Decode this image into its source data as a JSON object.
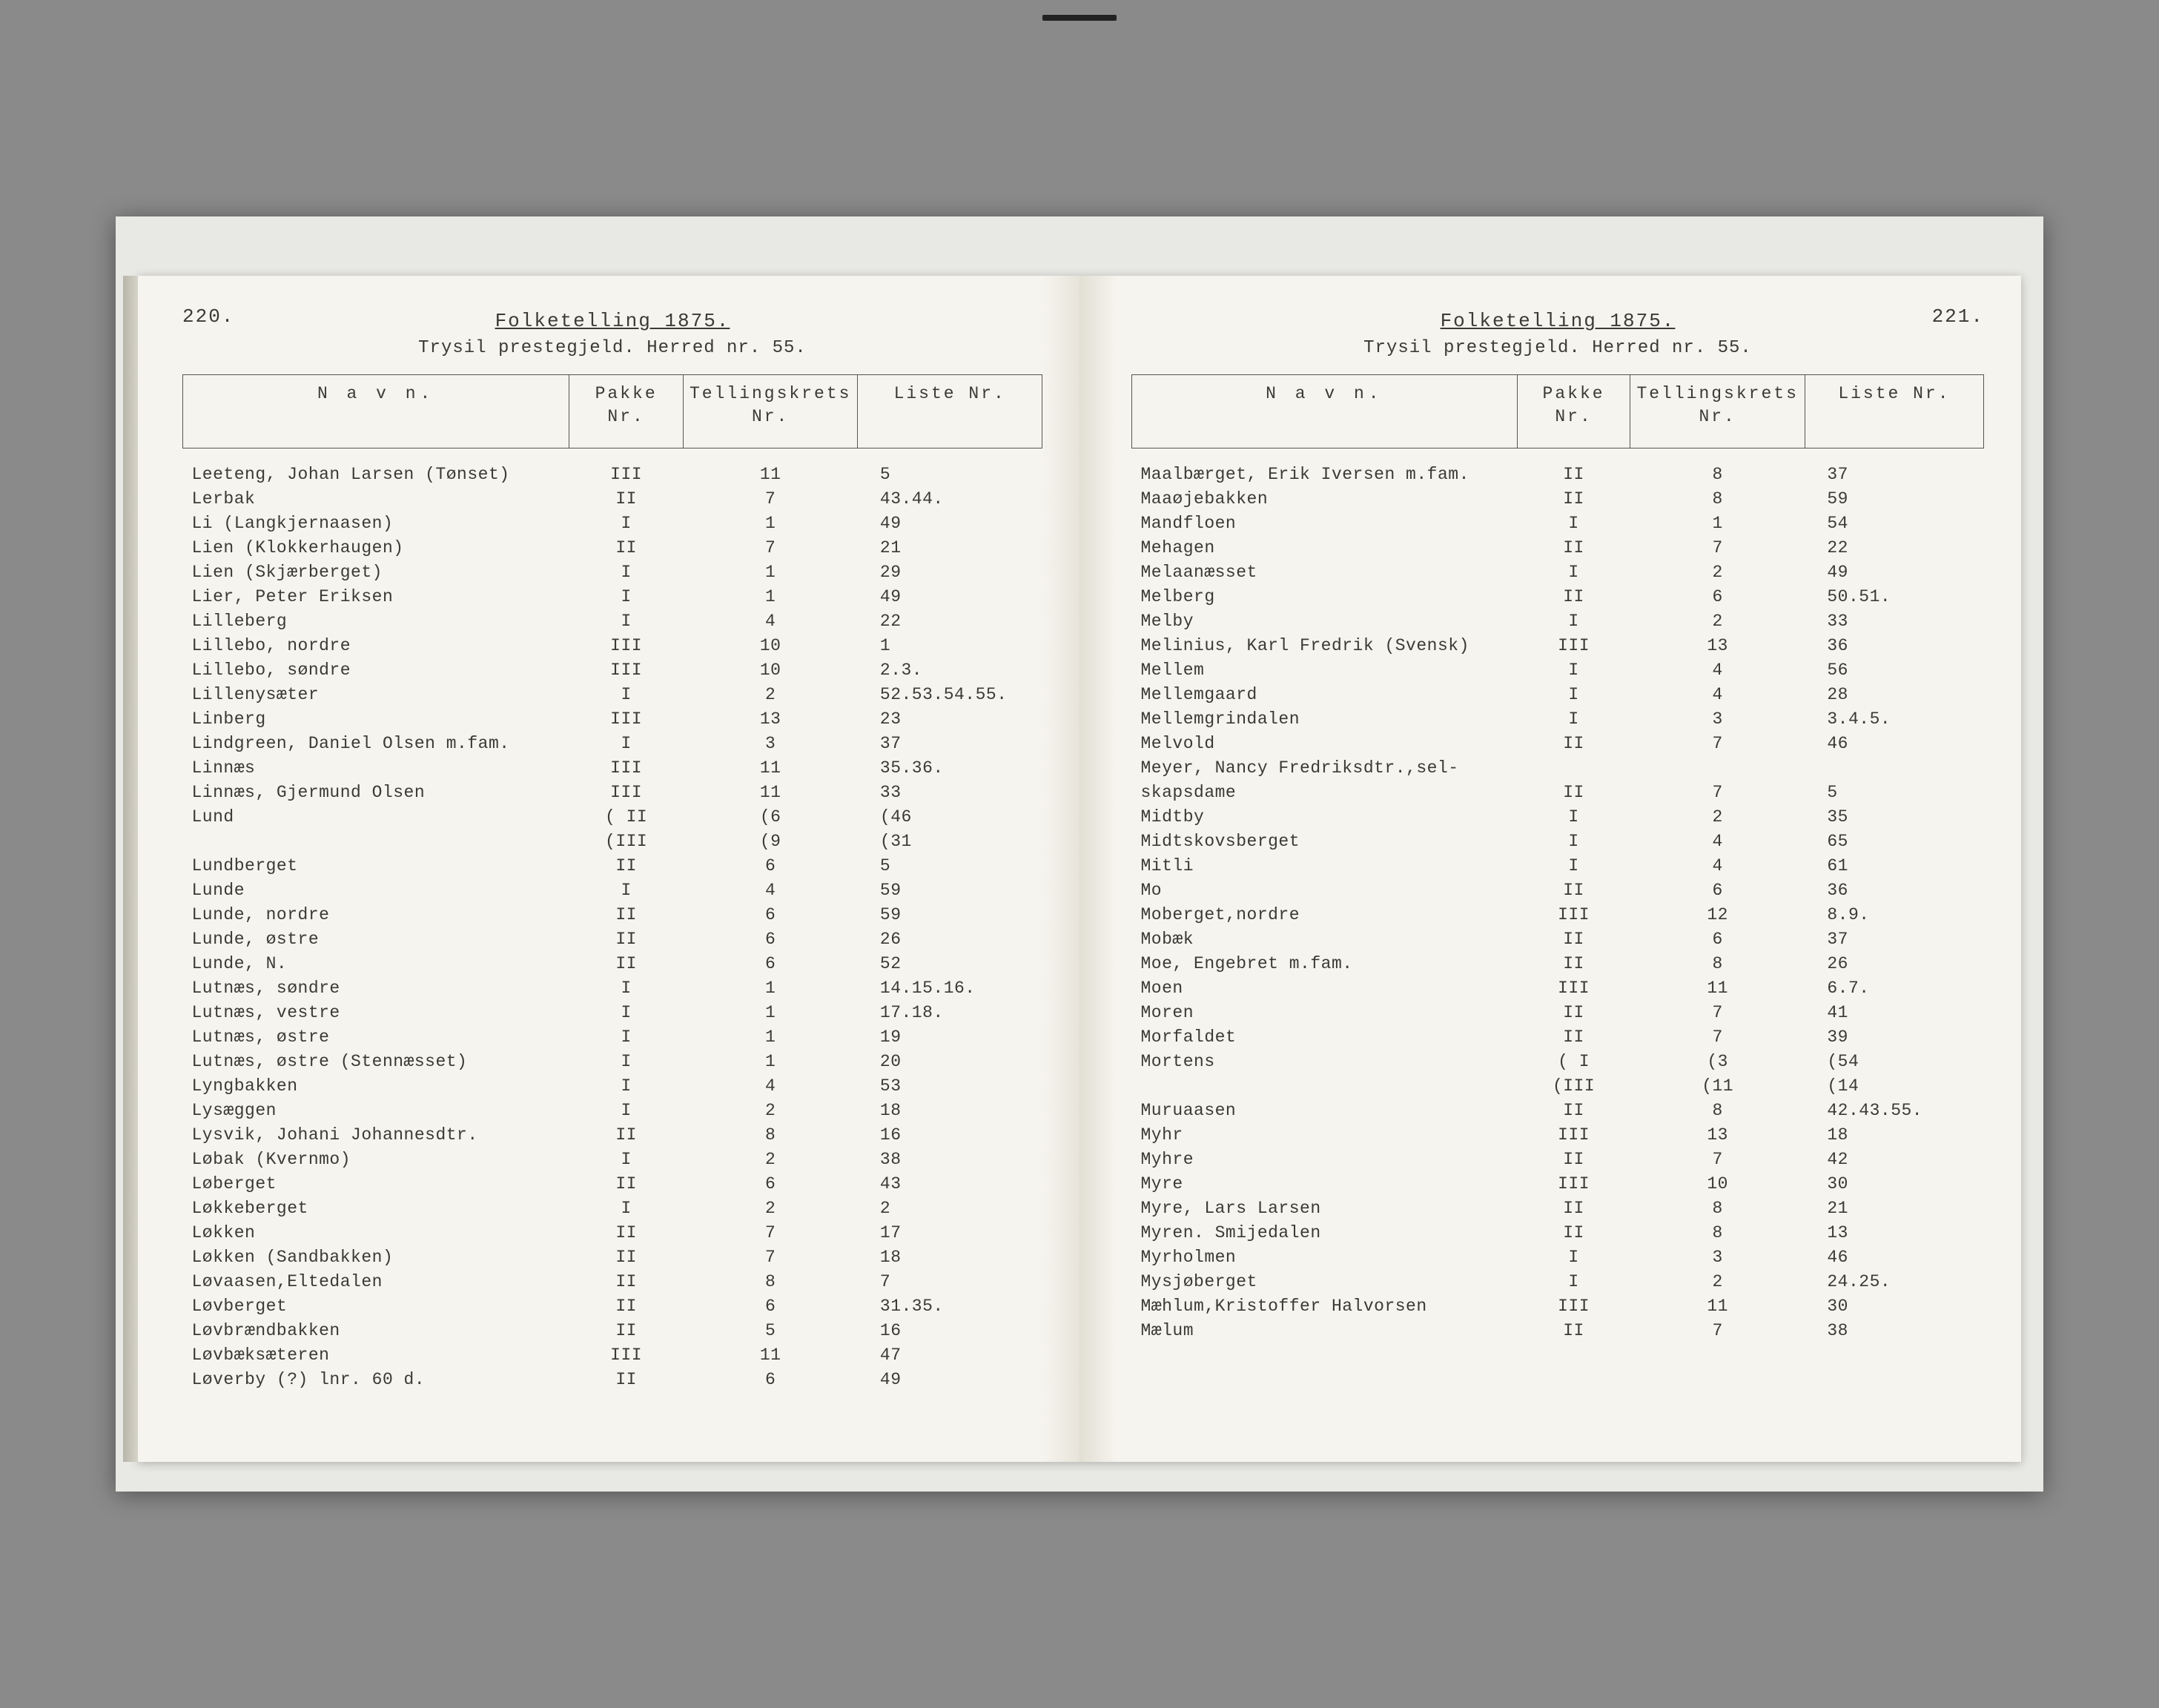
{
  "book": {
    "leftPage": {
      "pageNumber": "220.",
      "heading": "Folketelling 1875.",
      "subheading": "Trysil prestegjeld. Herred nr. 55.",
      "columns": [
        "N a v n.",
        "Pakke\nNr.",
        "Tellingskrets\nNr.",
        "Liste\nNr."
      ],
      "rows": [
        {
          "navn": "Leeteng, Johan Larsen (Tønset)",
          "pakke": "III",
          "krets": "11",
          "liste": "5"
        },
        {
          "navn": "Lerbak",
          "pakke": "II",
          "krets": "7",
          "liste": "43.44."
        },
        {
          "navn": "Li (Langkjernaasen)",
          "pakke": "I",
          "krets": "1",
          "liste": "49"
        },
        {
          "navn": "Lien (Klokkerhaugen)",
          "pakke": "II",
          "krets": "7",
          "liste": "21"
        },
        {
          "navn": "Lien (Skjærberget)",
          "pakke": "I",
          "krets": "1",
          "liste": "29"
        },
        {
          "navn": "Lier, Peter Eriksen",
          "pakke": "I",
          "krets": "1",
          "liste": "49"
        },
        {
          "navn": "Lilleberg",
          "pakke": "I",
          "krets": "4",
          "liste": "22"
        },
        {
          "navn": "Lillebo, nordre",
          "pakke": "III",
          "krets": "10",
          "liste": "1"
        },
        {
          "navn": "Lillebo, søndre",
          "pakke": "III",
          "krets": "10",
          "liste": "2.3."
        },
        {
          "navn": "Lillenysæter",
          "pakke": "I",
          "krets": "2",
          "liste": "52.53.54.55."
        },
        {
          "navn": "Linberg",
          "pakke": "III",
          "krets": "13",
          "liste": "23"
        },
        {
          "navn": "Lindgreen, Daniel Olsen m.fam.",
          "pakke": "I",
          "krets": "3",
          "liste": "37"
        },
        {
          "navn": "Linnæs",
          "pakke": "III",
          "krets": "11",
          "liste": "35.36."
        },
        {
          "navn": "Linnæs, Gjermund Olsen",
          "pakke": "III",
          "krets": "11",
          "liste": "33"
        },
        {
          "navn": "Lund",
          "pakke": "( II",
          "krets": "(6",
          "liste": "(46"
        },
        {
          "navn": "",
          "pakke": "(III",
          "krets": "(9",
          "liste": "(31"
        },
        {
          "navn": "Lundberget",
          "pakke": "II",
          "krets": "6",
          "liste": "5"
        },
        {
          "navn": "Lunde",
          "pakke": "I",
          "krets": "4",
          "liste": "59"
        },
        {
          "navn": "Lunde, nordre",
          "pakke": "II",
          "krets": "6",
          "liste": "59"
        },
        {
          "navn": "Lunde, østre",
          "pakke": "II",
          "krets": "6",
          "liste": "26"
        },
        {
          "navn": "Lunde, N.",
          "pakke": "II",
          "krets": "6",
          "liste": "52"
        },
        {
          "navn": "Lutnæs, søndre",
          "pakke": "I",
          "krets": "1",
          "liste": "14.15.16."
        },
        {
          "navn": "Lutnæs, vestre",
          "pakke": "I",
          "krets": "1",
          "liste": "17.18."
        },
        {
          "navn": "Lutnæs, østre",
          "pakke": "I",
          "krets": "1",
          "liste": "19"
        },
        {
          "navn": "Lutnæs, østre (Stennæsset)",
          "pakke": "I",
          "krets": "1",
          "liste": "20"
        },
        {
          "navn": "Lyngbakken",
          "pakke": "I",
          "krets": "4",
          "liste": "53"
        },
        {
          "navn": "Lysæggen",
          "pakke": "I",
          "krets": "2",
          "liste": "18"
        },
        {
          "navn": "Lysvik, Johani Johannesdtr.",
          "pakke": "II",
          "krets": "8",
          "liste": "16"
        },
        {
          "navn": "Løbak (Kvernmo)",
          "pakke": "I",
          "krets": "2",
          "liste": "38"
        },
        {
          "navn": "Løberget",
          "pakke": "II",
          "krets": "6",
          "liste": "43"
        },
        {
          "navn": "Løkkeberget",
          "pakke": "I",
          "krets": "2",
          "liste": "2"
        },
        {
          "navn": "Løkken",
          "pakke": "II",
          "krets": "7",
          "liste": "17"
        },
        {
          "navn": "Løkken (Sandbakken)",
          "pakke": "II",
          "krets": "7",
          "liste": "18"
        },
        {
          "navn": "Løvaasen,Eltedalen",
          "pakke": "II",
          "krets": "8",
          "liste": "7"
        },
        {
          "navn": "Løvberget",
          "pakke": "II",
          "krets": "6",
          "liste": "31.35."
        },
        {
          "navn": "Løvbrændbakken",
          "pakke": "II",
          "krets": "5",
          "liste": "16"
        },
        {
          "navn": "Løvbæksæteren",
          "pakke": "III",
          "krets": "11",
          "liste": "47"
        },
        {
          "navn": "Løverby (?) lnr. 60 d.",
          "pakke": "II",
          "krets": "6",
          "liste": "49"
        }
      ]
    },
    "rightPage": {
      "pageNumber": "221.",
      "heading": "Folketelling 1875.",
      "subheading": "Trysil prestegjeld. Herred nr. 55.",
      "columns": [
        "N a v n.",
        "Pakke\nNr.",
        "Tellingskrets\nNr.",
        "Liste\nNr."
      ],
      "rows": [
        {
          "navn": "Maalbærget, Erik Iversen m.fam.",
          "pakke": "II",
          "krets": "8",
          "liste": "37"
        },
        {
          "navn": "Maaøjebakken",
          "pakke": "II",
          "krets": "8",
          "liste": "59"
        },
        {
          "navn": "Mandfloen",
          "pakke": "I",
          "krets": "1",
          "liste": "54"
        },
        {
          "navn": "Mehagen",
          "pakke": "II",
          "krets": "7",
          "liste": "22"
        },
        {
          "navn": "Melaanæsset",
          "pakke": "I",
          "krets": "2",
          "liste": "49"
        },
        {
          "navn": "Melberg",
          "pakke": "II",
          "krets": "6",
          "liste": "50.51."
        },
        {
          "navn": "Melby",
          "pakke": "I",
          "krets": "2",
          "liste": "33"
        },
        {
          "navn": "Melinius, Karl Fredrik (Svensk)",
          "pakke": "III",
          "krets": "13",
          "liste": "36"
        },
        {
          "navn": "Mellem",
          "pakke": "I",
          "krets": "4",
          "liste": "56"
        },
        {
          "navn": "Mellemgaard",
          "pakke": "I",
          "krets": "4",
          "liste": "28"
        },
        {
          "navn": "Mellemgrindalen",
          "pakke": "I",
          "krets": "3",
          "liste": "3.4.5."
        },
        {
          "navn": "Melvold",
          "pakke": "II",
          "krets": "7",
          "liste": "46"
        },
        {
          "navn": "Meyer, Nancy Fredriksdtr.,sel-",
          "pakke": "",
          "krets": "",
          "liste": ""
        },
        {
          "navn": "    skapsdame",
          "pakke": "II",
          "krets": "7",
          "liste": "5"
        },
        {
          "navn": "Midtby",
          "pakke": "I",
          "krets": "2",
          "liste": "35"
        },
        {
          "navn": "Midtskovsberget",
          "pakke": "I",
          "krets": "4",
          "liste": "65"
        },
        {
          "navn": "Mitli",
          "pakke": "I",
          "krets": "4",
          "liste": "61"
        },
        {
          "navn": "Mo",
          "pakke": "II",
          "krets": "6",
          "liste": "36"
        },
        {
          "navn": "Moberget,nordre",
          "pakke": "III",
          "krets": "12",
          "liste": "8.9."
        },
        {
          "navn": "Mobæk",
          "pakke": "II",
          "krets": "6",
          "liste": "37"
        },
        {
          "navn": "Moe, Engebret m.fam.",
          "pakke": "II",
          "krets": "8",
          "liste": "26"
        },
        {
          "navn": "Moen",
          "pakke": "III",
          "krets": "11",
          "liste": "6.7."
        },
        {
          "navn": "Moren",
          "pakke": "II",
          "krets": "7",
          "liste": "41"
        },
        {
          "navn": "Morfaldet",
          "pakke": "II",
          "krets": "7",
          "liste": "39"
        },
        {
          "navn": "Mortens",
          "pakke": "( I",
          "krets": "(3",
          "liste": "(54"
        },
        {
          "navn": "",
          "pakke": "(III",
          "krets": "(11",
          "liste": "(14"
        },
        {
          "navn": "Muruaasen",
          "pakke": "II",
          "krets": "8",
          "liste": "42.43.55."
        },
        {
          "navn": "Myhr",
          "pakke": "III",
          "krets": "13",
          "liste": "18"
        },
        {
          "navn": "Myhre",
          "pakke": "II",
          "krets": "7",
          "liste": "42"
        },
        {
          "navn": "Myre",
          "pakke": "III",
          "krets": "10",
          "liste": "30"
        },
        {
          "navn": "Myre, Lars Larsen",
          "pakke": "II",
          "krets": "8",
          "liste": "21"
        },
        {
          "navn": "Myren. Smijedalen",
          "pakke": "II",
          "krets": "8",
          "liste": "13"
        },
        {
          "navn": "Myrholmen",
          "pakke": "I",
          "krets": "3",
          "liste": "46"
        },
        {
          "navn": "Mysjøberget",
          "pakke": "I",
          "krets": "2",
          "liste": "24.25."
        },
        {
          "navn": "Mæhlum,Kristoffer Halvorsen",
          "pakke": "III",
          "krets": "11",
          "liste": "30"
        },
        {
          "navn": "Mælum",
          "pakke": "II",
          "krets": "7",
          "liste": "38"
        }
      ]
    }
  },
  "style": {
    "background_color": "#8a8a8a",
    "paper_color": "#f6f4ee",
    "ink_color": "#3a3a36",
    "font_family": "Courier New",
    "body_fontsize": 23,
    "heading_fontsize": 26
  }
}
